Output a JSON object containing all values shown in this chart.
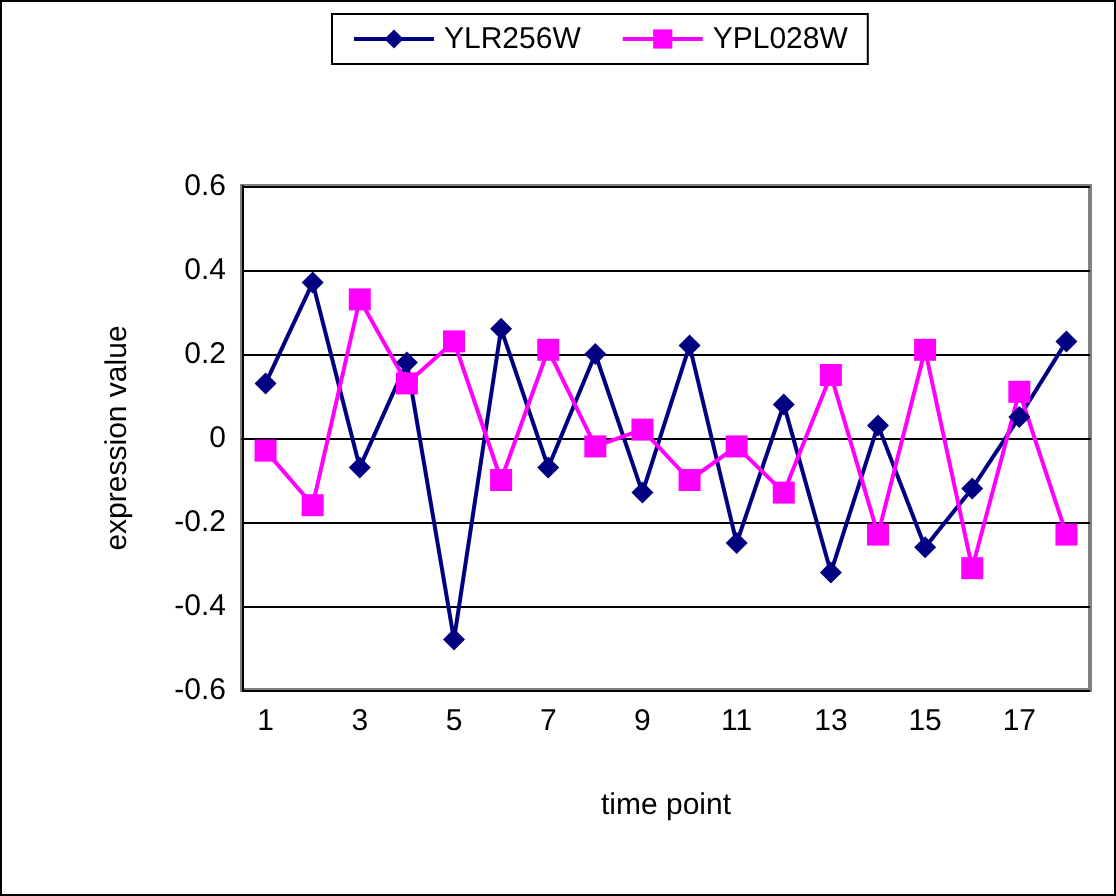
{
  "chart_data": {
    "type": "line",
    "xlabel": "time point",
    "ylabel": "expression value",
    "x": [
      1,
      2,
      3,
      4,
      5,
      6,
      7,
      8,
      9,
      10,
      11,
      12,
      13,
      14,
      15,
      16,
      17,
      18
    ],
    "xlim": [
      0.5,
      18.5
    ],
    "xticks": [
      1,
      3,
      5,
      7,
      9,
      11,
      13,
      15,
      17
    ],
    "series": [
      {
        "name": "YLR256W",
        "color": "#000080",
        "marker": "diamond",
        "values": [
          0.13,
          0.37,
          -0.07,
          0.18,
          -0.48,
          0.26,
          -0.07,
          0.2,
          -0.13,
          0.22,
          -0.25,
          0.08,
          -0.32,
          0.03,
          -0.26,
          -0.12,
          0.05,
          0.23
        ]
      },
      {
        "name": "YPL028W",
        "color": "#ff00ff",
        "marker": "square",
        "values": [
          -0.03,
          -0.16,
          0.33,
          0.13,
          0.23,
          -0.1,
          0.21,
          -0.02,
          0.02,
          -0.1,
          -0.02,
          -0.13,
          0.15,
          -0.23,
          0.21,
          -0.31,
          0.11,
          -0.23
        ]
      }
    ],
    "ylim": [
      -0.6,
      0.6
    ],
    "yticks": [
      -0.6,
      -0.4,
      -0.2,
      0,
      0.2,
      0.4,
      0.6
    ],
    "grid": "y",
    "legend": "top"
  }
}
